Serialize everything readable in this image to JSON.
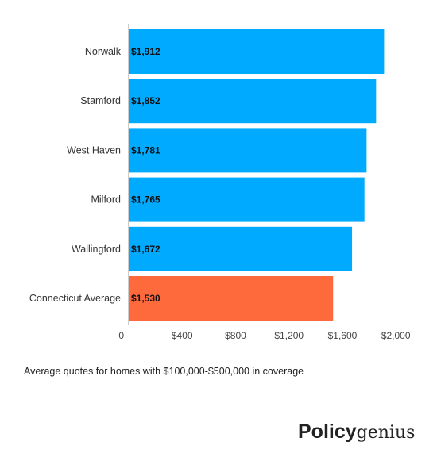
{
  "chart_data": {
    "type": "bar",
    "orientation": "horizontal",
    "categories": [
      "Norwalk",
      "Stamford",
      "West Haven",
      "Milford",
      "Wallingford",
      "Connecticut Average"
    ],
    "values": [
      1912,
      1852,
      1781,
      1765,
      1672,
      1530
    ],
    "value_labels": [
      "$1,912",
      "$1,852",
      "$1,781",
      "$1,765",
      "$1,672",
      "$1,530"
    ],
    "highlight_index": 5,
    "colors": {
      "bar": "#00aaff",
      "highlight": "#ff6a3d"
    },
    "xlim": [
      0,
      2100
    ],
    "x_ticks": [
      0,
      400,
      800,
      1200,
      1600,
      2000
    ],
    "x_tick_labels": [
      "0",
      "$400",
      "$800",
      "$1,200",
      "$1,600",
      "$2,000"
    ],
    "grid": false,
    "legend": "none"
  },
  "caption": "Average quotes for homes with $100,000-$500,000 in coverage",
  "logo": {
    "text": "Policygenius",
    "strong_part": "Policy",
    "light_part": "genius"
  }
}
